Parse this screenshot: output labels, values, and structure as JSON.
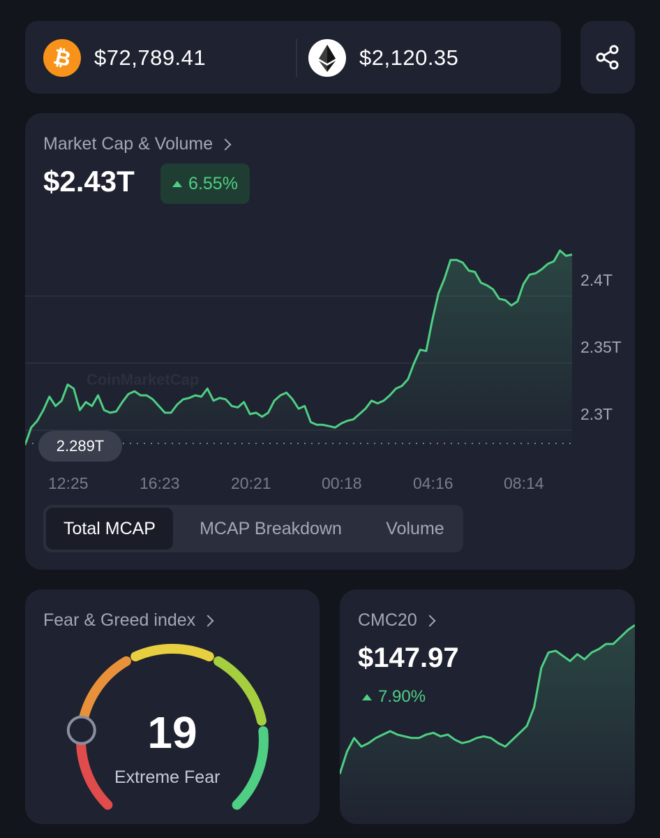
{
  "prices": {
    "btc": {
      "icon": "bitcoin-icon",
      "value": "$72,789.41"
    },
    "eth": {
      "icon": "ethereum-icon",
      "value": "$2,120.35"
    }
  },
  "share": {
    "icon": "share-icon"
  },
  "market_cap": {
    "title": "Market Cap & Volume",
    "value": "$2.43T",
    "change": "6.55%",
    "low_label": "2.289T",
    "watermark": "CoinMarketCap",
    "tabs": [
      {
        "label": "Total MCAP",
        "active": true
      },
      {
        "label": "MCAP Breakdown",
        "active": false
      },
      {
        "label": "Volume",
        "active": false
      }
    ]
  },
  "fear_greed": {
    "title": "Fear & Greed index",
    "value": "19",
    "label": "Extreme Fear"
  },
  "cmc20": {
    "title": "CMC20",
    "value": "$147.97",
    "change": "7.90%"
  },
  "colors": {
    "background": "#13151d",
    "card": "#1f2230",
    "up": "#4fcf84",
    "muted": "#a2a8b8"
  },
  "chart_data": [
    {
      "type": "area",
      "title": "Market Cap & Volume",
      "x_ticks": [
        "12:25",
        "16:23",
        "20:21",
        "00:18",
        "04:16",
        "08:14"
      ],
      "y_ticks": [
        "2.4T",
        "2.35T",
        "2.3T"
      ],
      "ylim": [
        2.285,
        2.445
      ],
      "unit": "T",
      "grid": true,
      "series": [
        {
          "values": [
            2.289,
            2.302,
            2.307,
            2.315,
            2.325,
            2.318,
            2.322,
            2.334,
            2.331,
            2.315,
            2.321,
            2.318,
            2.326,
            2.315,
            2.313,
            2.314,
            2.321,
            2.327,
            2.329,
            2.326,
            2.326,
            2.323,
            2.318,
            2.313,
            2.313,
            2.319,
            2.323,
            2.324,
            2.326,
            2.325,
            2.331,
            2.322,
            2.324,
            2.323,
            2.318,
            2.317,
            2.321,
            2.312,
            2.313,
            2.31,
            2.313,
            2.322,
            2.326,
            2.328,
            2.323,
            2.316,
            2.318,
            2.306,
            2.304,
            2.304,
            2.303,
            2.302,
            2.305,
            2.307,
            2.308,
            2.312,
            2.316,
            2.322,
            2.32,
            2.322,
            2.326,
            2.331,
            2.333,
            2.338,
            2.35,
            2.36,
            2.359,
            2.382,
            2.402,
            2.413,
            2.427,
            2.427,
            2.425,
            2.419,
            2.418,
            2.41,
            2.408,
            2.405,
            2.398,
            2.397,
            2.393,
            2.396,
            2.409,
            2.416,
            2.417,
            2.42,
            2.424,
            2.426,
            2.434,
            2.43,
            2.431
          ]
        }
      ]
    },
    {
      "type": "line",
      "title": "CMC20",
      "series": [
        {
          "values": [
            137.5,
            138.8,
            139.6,
            139.1,
            139.3,
            139.6,
            139.8,
            140,
            139.8,
            139.7,
            139.6,
            139.6,
            139.8,
            139.9,
            139.7,
            139.8,
            139.5,
            139.3,
            139.4,
            139.6,
            139.7,
            139.6,
            139.3,
            139.1,
            139.5,
            139.9,
            140.3,
            141.4,
            143.7,
            144.6,
            144.7,
            144.4,
            144.1,
            144.5,
            144.2,
            144.6,
            144.8,
            145.1,
            145.1,
            145.5,
            145.9,
            146.2
          ]
        }
      ]
    }
  ]
}
